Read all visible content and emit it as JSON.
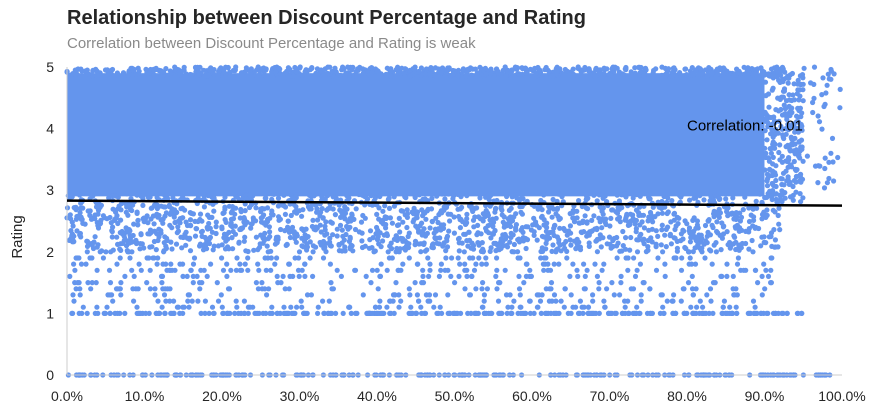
{
  "chart_data": {
    "type": "scatter",
    "title": "Relationship between Discount Percentage and Rating",
    "subtitle": "Correlation between Discount Percentage and Rating is weak",
    "xlabel": "",
    "ylabel": "Rating",
    "xlim": [
      0,
      1
    ],
    "ylim": [
      0,
      5
    ],
    "x_tick_labels": [
      "0.0%",
      "10.0%",
      "20.0%",
      "30.0%",
      "40.0%",
      "50.0%",
      "60.0%",
      "70.0%",
      "80.0%",
      "90.0%",
      "100.0%"
    ],
    "y_tick_labels": [
      "0",
      "1",
      "2",
      "3",
      "4",
      "5"
    ],
    "grid": false,
    "point_color": "#6495ED",
    "trendline": {
      "color": "#000000",
      "x": [
        0.0,
        1.0
      ],
      "y": [
        2.83,
        2.75
      ]
    },
    "annotation": {
      "text": "Correlation: -0.01",
      "x": 0.8,
      "y": 4.05
    }
  }
}
